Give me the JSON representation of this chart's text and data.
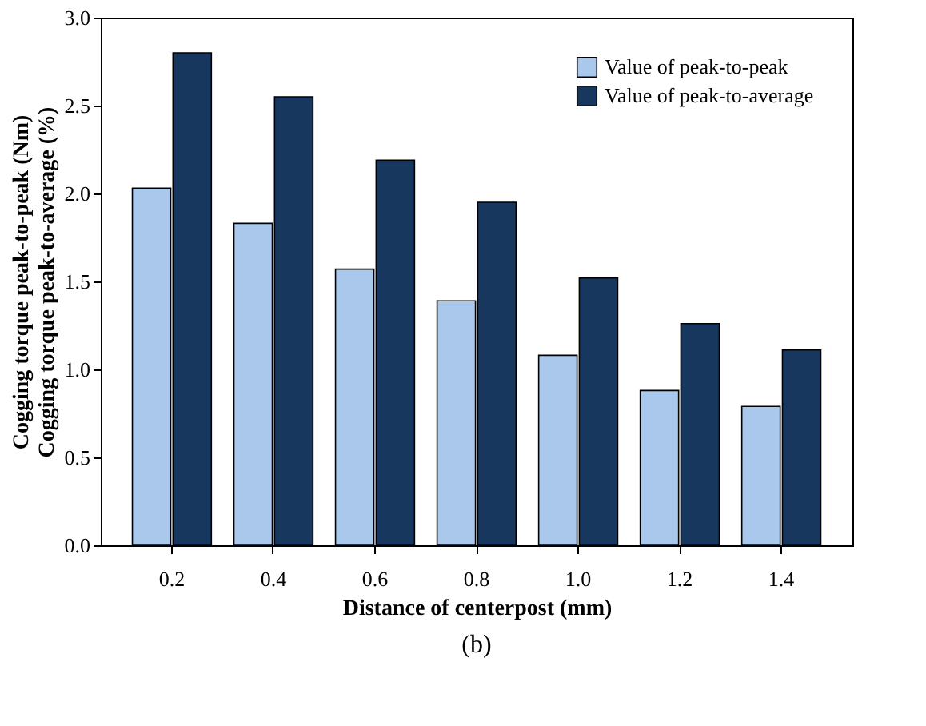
{
  "chart_data": {
    "type": "bar",
    "xlabel": "Distance of centerpost (mm)",
    "ylabel": "Cogging torque peak-to-peak (Nm)\nCogging torque peak-to-average (%)",
    "categories": [
      "0.2",
      "0.4",
      "0.6",
      "0.8",
      "1.0",
      "1.2",
      "1.4"
    ],
    "series": [
      {
        "name": "Value of peak-to-peak",
        "color": "#a9c8ec",
        "values": [
          2.03,
          1.83,
          1.57,
          1.39,
          1.08,
          0.88,
          0.79
        ]
      },
      {
        "name": "Value of peak-to-average",
        "color": "#17375e",
        "values": [
          2.8,
          2.55,
          2.19,
          1.95,
          1.52,
          1.26,
          1.11
        ]
      }
    ],
    "ylim": [
      0,
      3
    ],
    "yticks": [
      {
        "value": 0,
        "label": "0.0"
      },
      {
        "value": 0.5,
        "label": "0.5"
      },
      {
        "value": 1,
        "label": "1.0"
      },
      {
        "value": 1.5,
        "label": "1.5"
      },
      {
        "value": 2,
        "label": "2.0"
      },
      {
        "value": 2.5,
        "label": "2.5"
      },
      {
        "value": 3,
        "label": "3.0"
      }
    ],
    "legend": "top right",
    "grid": false,
    "annotations": [
      "(b)"
    ]
  }
}
